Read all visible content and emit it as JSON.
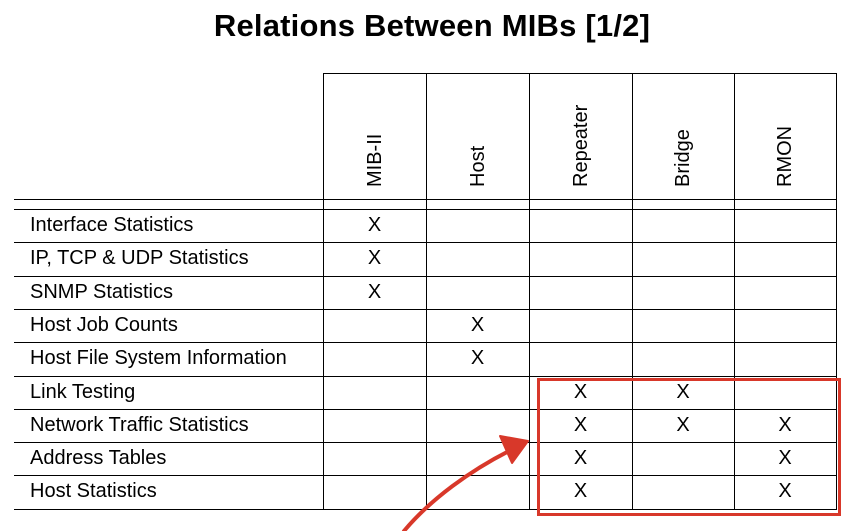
{
  "title": "Relations Between MIBs [1/2]",
  "columns": [
    "MIB-II",
    "Host",
    "Repeater",
    "Bridge",
    "RMON"
  ],
  "rows": [
    {
      "label": "Interface Statistics",
      "marks": [
        "X",
        "",
        "",
        "",
        ""
      ]
    },
    {
      "label": "IP, TCP & UDP Statistics",
      "marks": [
        "X",
        "",
        "",
        "",
        ""
      ]
    },
    {
      "label": "SNMP Statistics",
      "marks": [
        "X",
        "",
        "",
        "",
        ""
      ]
    },
    {
      "label": "Host Job Counts",
      "marks": [
        "",
        "X",
        "",
        "",
        ""
      ]
    },
    {
      "label": "Host File System Information",
      "marks": [
        "",
        "X",
        "",
        "",
        ""
      ]
    },
    {
      "label": "Link Testing",
      "marks": [
        "",
        "",
        "X",
        "X",
        ""
      ]
    },
    {
      "label": "Network Traffic Statistics",
      "marks": [
        "",
        "",
        "X",
        "X",
        "X"
      ]
    },
    {
      "label": "Address Tables",
      "marks": [
        "",
        "",
        "X",
        "",
        "X"
      ]
    },
    {
      "label": "Host Statistics",
      "marks": [
        "",
        "",
        "X",
        "",
        "X"
      ]
    }
  ],
  "colors": {
    "highlight": "#d8382a"
  }
}
